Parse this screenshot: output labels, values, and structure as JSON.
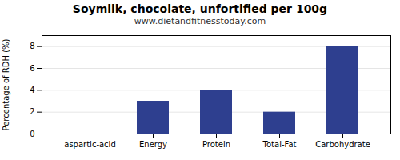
{
  "chart_data": {
    "type": "bar",
    "title": "Soymilk, chocolate, unfortified per 100g",
    "subtitle": "www.dietandfitnesstoday.com",
    "categories": [
      "aspartic-acid",
      "Energy",
      "Protein",
      "Total-Fat",
      "Carbohydrate"
    ],
    "values": [
      0,
      3,
      4,
      2,
      8
    ],
    "color": "#2e3f8f",
    "ylabel": "Percentage of RDH (%)",
    "ylim": [
      0,
      9
    ],
    "yticks": [
      0,
      2,
      4,
      6,
      8
    ],
    "grid": true
  }
}
